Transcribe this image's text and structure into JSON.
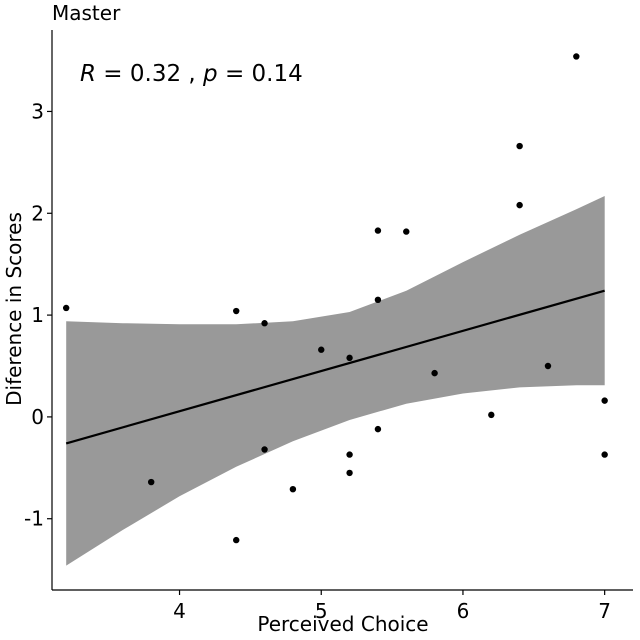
{
  "chart_data": {
    "type": "scatter",
    "title": "Master",
    "xlabel": "Perceived Choice",
    "ylabel": "Diference in Scores",
    "xlim": [
      3.1,
      7.2
    ],
    "ylim": [
      -1.7,
      3.8
    ],
    "xticks": [
      4,
      5,
      6,
      7
    ],
    "yticks": [
      -1,
      0,
      1,
      2,
      3
    ],
    "xtick_labels": [
      "4",
      "5",
      "6",
      "7"
    ],
    "ytick_labels": [
      "-1",
      "0",
      "1",
      "2",
      "3"
    ],
    "grid": false,
    "annotation": {
      "r_symbol": "R",
      "r_text": " = 0.32 , ",
      "p_symbol": "p",
      "p_text": " = 0.14"
    },
    "points": [
      {
        "x": 3.2,
        "y": 1.07
      },
      {
        "x": 3.8,
        "y": -0.64
      },
      {
        "x": 4.4,
        "y": 1.04
      },
      {
        "x": 4.4,
        "y": -1.21
      },
      {
        "x": 4.6,
        "y": 0.92
      },
      {
        "x": 4.6,
        "y": -0.32
      },
      {
        "x": 4.8,
        "y": -0.71
      },
      {
        "x": 5.0,
        "y": 0.66
      },
      {
        "x": 5.2,
        "y": 0.58
      },
      {
        "x": 5.2,
        "y": -0.37
      },
      {
        "x": 5.2,
        "y": -0.55
      },
      {
        "x": 5.4,
        "y": 1.83
      },
      {
        "x": 5.4,
        "y": 1.15
      },
      {
        "x": 5.4,
        "y": -0.12
      },
      {
        "x": 5.6,
        "y": 1.82
      },
      {
        "x": 5.8,
        "y": 0.43
      },
      {
        "x": 6.2,
        "y": 0.02
      },
      {
        "x": 6.4,
        "y": 2.66
      },
      {
        "x": 6.4,
        "y": 2.08
      },
      {
        "x": 6.6,
        "y": 0.5
      },
      {
        "x": 6.8,
        "y": 3.54
      },
      {
        "x": 7.0,
        "y": 0.16
      },
      {
        "x": 7.0,
        "y": -0.37
      }
    ],
    "regression_line": [
      {
        "x": 3.2,
        "y": -0.26
      },
      {
        "x": 7.0,
        "y": 1.24
      }
    ],
    "confidence_band": {
      "x": [
        3.2,
        3.6,
        4.0,
        4.4,
        4.8,
        5.2,
        5.6,
        6.0,
        6.4,
        6.8,
        7.0
      ],
      "upper": [
        0.94,
        0.92,
        0.91,
        0.91,
        0.94,
        1.03,
        1.24,
        1.52,
        1.79,
        2.04,
        2.17
      ],
      "lower": [
        -1.46,
        -1.11,
        -0.78,
        -0.49,
        -0.24,
        -0.03,
        0.13,
        0.23,
        0.29,
        0.31,
        0.31
      ]
    },
    "colors": {
      "points": "#000000",
      "line": "#000000",
      "band": "#999999",
      "axis": "#000000"
    }
  }
}
